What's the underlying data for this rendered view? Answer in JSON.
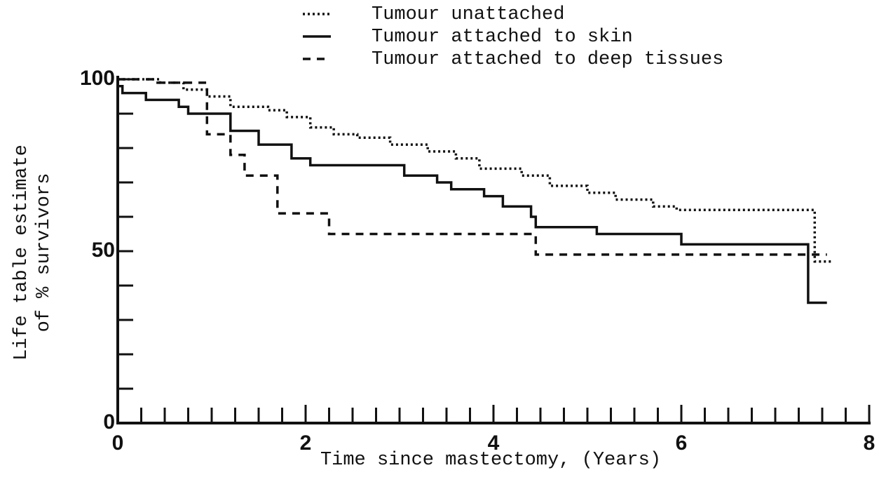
{
  "chart_data": {
    "type": "step",
    "x_label": "Time since mastectomy, (Years)",
    "y_label": [
      "Life table estimate",
      "of % survivors"
    ],
    "xlim": [
      0,
      8
    ],
    "ylim": [
      0,
      100
    ],
    "xticks": [
      0,
      2,
      4,
      6,
      8
    ],
    "yticks": [
      0,
      50,
      100
    ],
    "xminorticks": [
      0.25,
      0.5,
      0.75,
      1,
      1.25,
      1.5,
      1.75,
      2.25,
      2.5,
      2.75,
      3,
      3.25,
      3.5,
      3.75,
      4.25,
      4.5,
      4.75,
      5,
      5.25,
      5.5,
      5.75,
      6.25,
      6.5,
      6.75,
      7,
      7.25,
      7.5,
      7.75
    ],
    "yminorticks": [
      10,
      20,
      30,
      40,
      60,
      70,
      80,
      90
    ],
    "series": [
      {
        "name": "Tumour unattached",
        "color": "#111",
        "dash": "3,4",
        "x": [
          0,
          0.45,
          0.7,
          0.95,
          1.2,
          1.6,
          1.8,
          2.05,
          2.3,
          2.55,
          2.9,
          3.3,
          3.6,
          3.85,
          4.3,
          4.6,
          5.0,
          5.3,
          5.7,
          5.95,
          7.42,
          7.6
        ],
        "values": [
          100,
          99,
          97,
          95,
          92,
          91,
          89,
          86,
          84,
          83,
          81,
          79,
          77,
          74,
          72,
          69,
          67,
          65,
          63,
          62,
          47,
          47
        ]
      },
      {
        "name": "Tumour attached to skin",
        "color": "#111",
        "dash": "none",
        "x": [
          0,
          0.05,
          0.3,
          0.65,
          0.75,
          1.2,
          1.5,
          1.85,
          2.05,
          3.05,
          3.4,
          3.55,
          3.9,
          4.1,
          4.4,
          4.45,
          5.1,
          6.0,
          7.35,
          7.55
        ],
        "values": [
          98,
          96,
          94,
          92,
          90,
          85,
          81,
          77,
          75,
          72,
          70,
          68,
          66,
          63,
          60,
          57,
          55,
          52,
          35,
          35
        ]
      },
      {
        "name": "Tumour attached to deep tissues",
        "color": "#111",
        "dash": "11,9",
        "x": [
          0,
          0.4,
          0.95,
          1.2,
          1.35,
          1.7,
          2.25,
          4.45,
          7.55
        ],
        "values": [
          100,
          99,
          84,
          78,
          72,
          61,
          55,
          49,
          49
        ]
      }
    ]
  }
}
